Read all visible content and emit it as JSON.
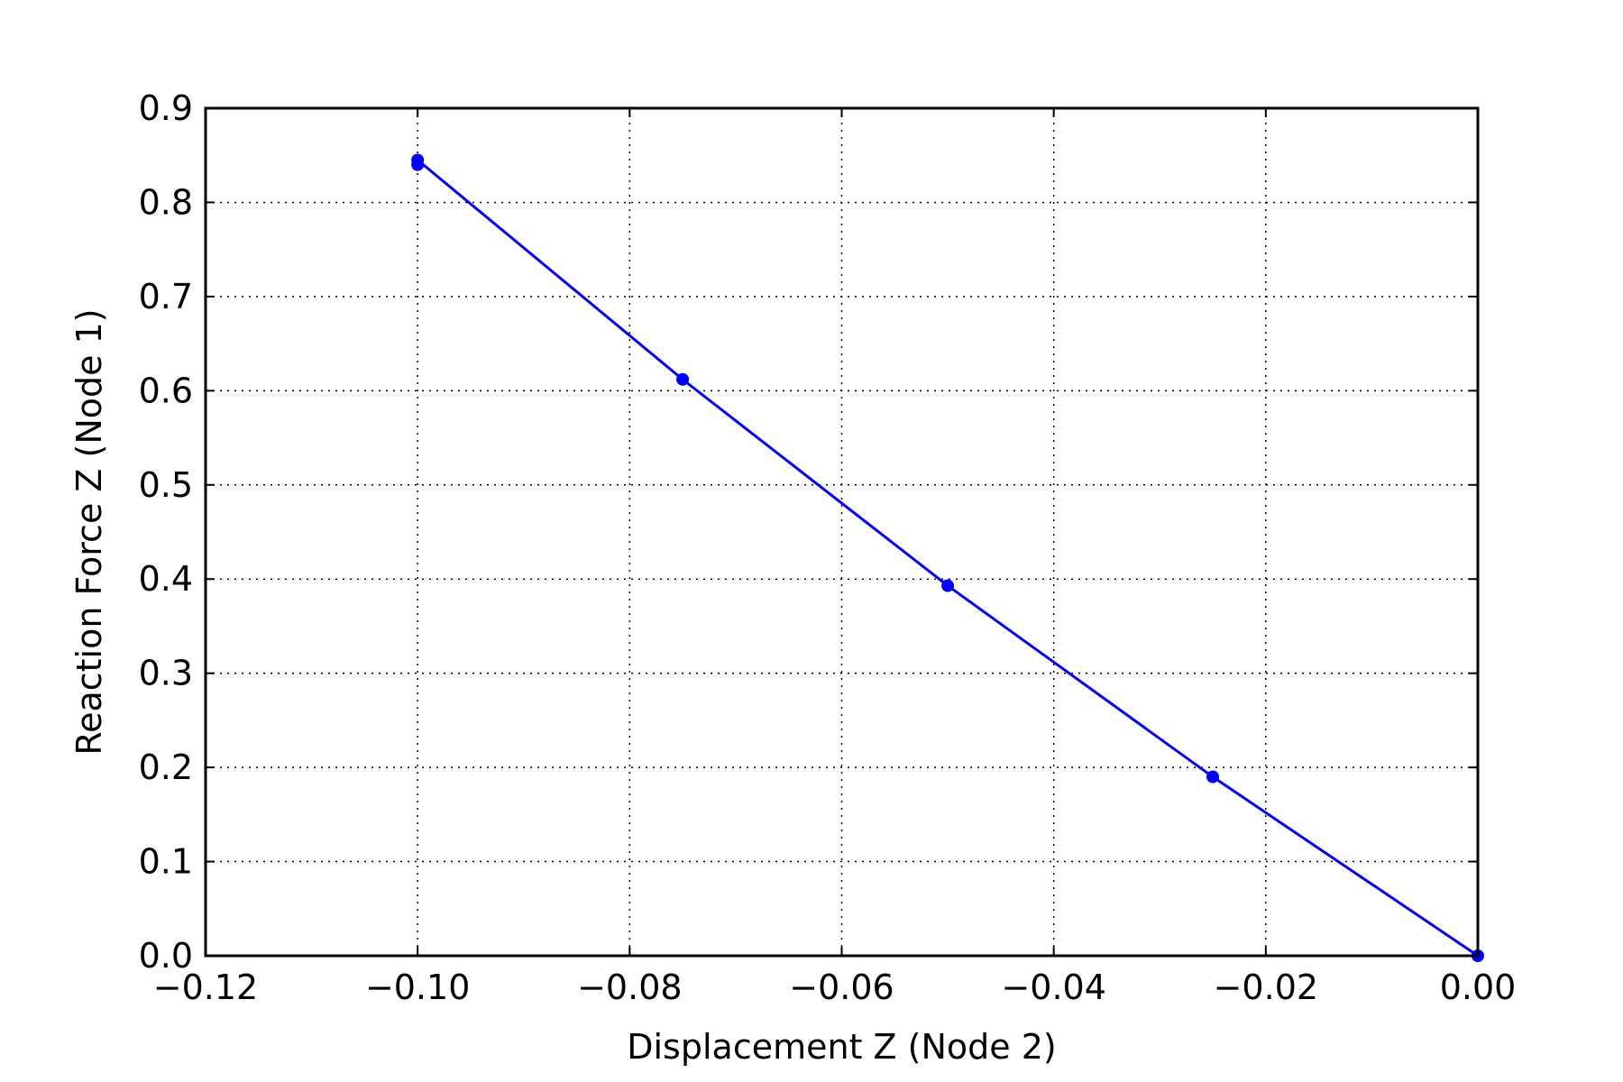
{
  "chart_data": {
    "type": "line",
    "title": "",
    "xlabel": "Displacement Z (Node 2)",
    "ylabel": "Reaction Force Z (Node 1)",
    "xlim": [
      -0.12,
      0.0
    ],
    "ylim": [
      0.0,
      0.9
    ],
    "x_ticks": [
      -0.12,
      -0.1,
      -0.08,
      -0.06,
      -0.04,
      -0.02,
      0.0
    ],
    "x_tick_labels": [
      "−0.12",
      "−0.10",
      "−0.08",
      "−0.06",
      "−0.04",
      "−0.02",
      "0.00"
    ],
    "y_ticks": [
      0.0,
      0.1,
      0.2,
      0.3,
      0.4,
      0.5,
      0.6,
      0.7,
      0.8,
      0.9
    ],
    "y_tick_labels": [
      "0.0",
      "0.1",
      "0.2",
      "0.3",
      "0.4",
      "0.5",
      "0.6",
      "0.7",
      "0.8",
      "0.9"
    ],
    "grid": true,
    "grid_style": "dotted",
    "legend": "none",
    "series": [
      {
        "color": "#0000ff",
        "marker": "circle",
        "x": [
          0.0,
          -0.025,
          -0.05,
          -0.075,
          -0.1,
          -0.1
        ],
        "y": [
          0.0,
          0.19,
          0.393,
          0.612,
          0.845,
          0.84
        ]
      }
    ]
  }
}
